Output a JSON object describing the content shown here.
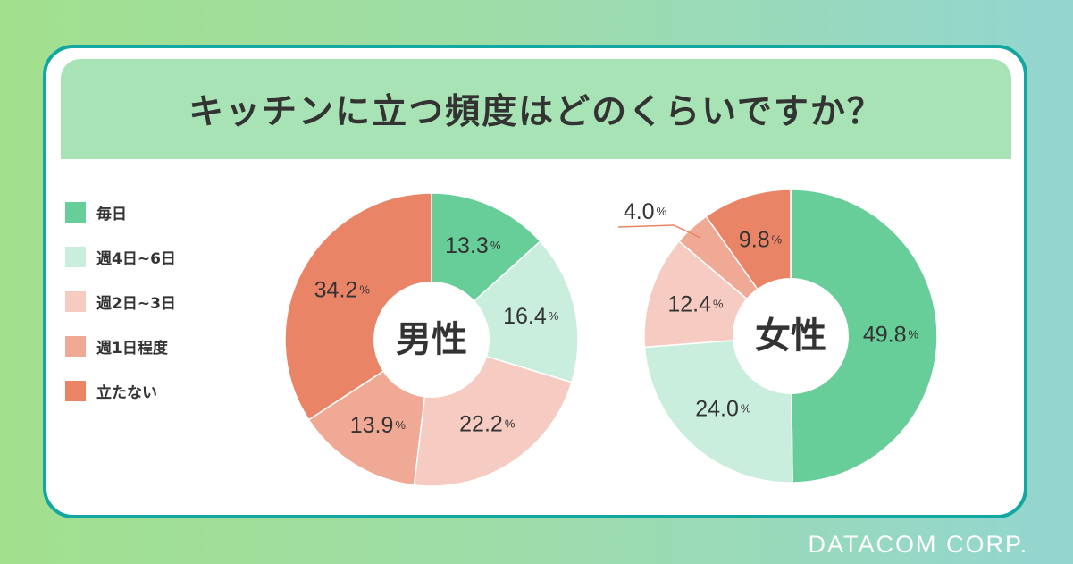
{
  "title": "キッチンに立つ頻度はどのくらいですか？",
  "footer": "DATACOM CORP.",
  "legend": [
    {
      "label": "毎日",
      "color": "#67cd99"
    },
    {
      "label": "週4日~6日",
      "color": "#c9eedd"
    },
    {
      "label": "週2日~3日",
      "color": "#f6cbc2"
    },
    {
      "label": "週1日程度",
      "color": "#efa995"
    },
    {
      "label": "立たない",
      "color": "#ea8467"
    }
  ],
  "chart_data": [
    {
      "type": "pie",
      "center_label": "男性",
      "categories": [
        "毎日",
        "週4日~6日",
        "週2日~3日",
        "週1日程度",
        "立たない"
      ],
      "values": [
        13.3,
        16.4,
        22.2,
        13.9,
        34.2
      ],
      "labels": [
        "13.3",
        "16.4",
        "22.2",
        "13.9",
        "34.2"
      ],
      "unit": "%"
    },
    {
      "type": "pie",
      "center_label": "女性",
      "categories": [
        "毎日",
        "週4日~6日",
        "週2日~3日",
        "週1日程度",
        "立たない"
      ],
      "values": [
        49.8,
        24.0,
        12.4,
        4.0,
        9.8
      ],
      "labels": [
        "49.8",
        "24.0",
        "12.4",
        "4.0",
        "9.8"
      ],
      "unit": "%"
    }
  ]
}
